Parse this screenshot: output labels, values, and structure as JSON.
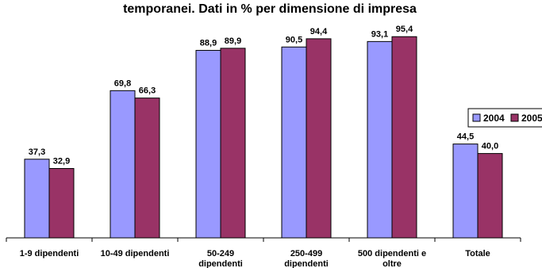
{
  "chart_data": {
    "type": "bar",
    "title": "temporanei. Dati in % per dimensione di impresa",
    "categories": [
      "1-9 dipendenti",
      "10-49 dipendenti",
      "50-249 dipendenti",
      "250-499 dipendenti",
      "500 dipendenti e oltre",
      "Totale"
    ],
    "series": [
      {
        "name": "2004",
        "values": [
          37.3,
          69.8,
          88.9,
          90.5,
          93.1,
          44.5
        ],
        "labels": [
          "37,3",
          "69,8",
          "88,9",
          "90,5",
          "93,1",
          "44,5"
        ],
        "color": "#9999ff"
      },
      {
        "name": "2005",
        "values": [
          32.9,
          66.3,
          89.9,
          94.4,
          95.4,
          40.0
        ],
        "labels": [
          "32,9",
          "66,3",
          "89,9",
          "94,4",
          "95,4",
          "40,0"
        ],
        "color": "#993366"
      }
    ],
    "ylim": [
      0,
      100
    ],
    "grid": false,
    "legend": "right"
  }
}
